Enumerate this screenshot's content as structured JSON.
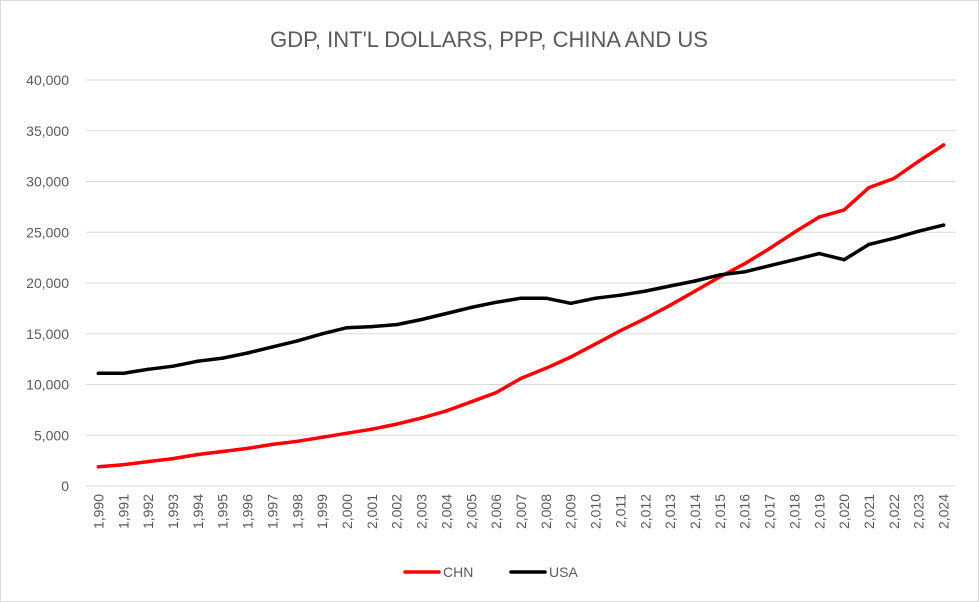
{
  "chart_data": {
    "type": "line",
    "title": "GDP, INT'L DOLLARS, PPP, CHINA AND US",
    "xlabel": "",
    "ylabel": "",
    "ylim": [
      0,
      40000
    ],
    "yticks": [
      "0",
      "5,000",
      "10,000",
      "15,000",
      "20,000",
      "25,000",
      "30,000",
      "35,000",
      "40,000"
    ],
    "yticks_values": [
      0,
      5000,
      10000,
      15000,
      20000,
      25000,
      30000,
      35000,
      40000
    ],
    "grid": true,
    "legend_position": "bottom",
    "categories": [
      "1,990",
      "1,991",
      "1,992",
      "1,993",
      "1,994",
      "1,995",
      "1,996",
      "1,997",
      "1,998",
      "1,999",
      "2,000",
      "2,001",
      "2,002",
      "2,003",
      "2,004",
      "2,005",
      "2,006",
      "2,007",
      "2,008",
      "2,009",
      "2,010",
      "2,011",
      "2,012",
      "2,013",
      "2,014",
      "2,015",
      "2,016",
      "2,017",
      "2,018",
      "2,019",
      "2,020",
      "2,021",
      "2,022",
      "2,023",
      "2,024"
    ],
    "series": [
      {
        "name": "CHN",
        "color": "#ff0000",
        "values": [
          1900,
          2100,
          2400,
          2700,
          3100,
          3400,
          3700,
          4100,
          4400,
          4800,
          5200,
          5600,
          6100,
          6700,
          7400,
          8300,
          9200,
          10600,
          11600,
          12700,
          14000,
          15300,
          16500,
          17800,
          19200,
          20600,
          21900,
          23400,
          25000,
          26500,
          27200,
          29400,
          30300,
          32000,
          33600
        ]
      },
      {
        "name": "USA",
        "color": "#000000",
        "values": [
          11100,
          11100,
          11500,
          11800,
          12300,
          12600,
          13100,
          13700,
          14300,
          15000,
          15600,
          15700,
          15900,
          16400,
          17000,
          17600,
          18100,
          18500,
          18500,
          18000,
          18500,
          18800,
          19200,
          19700,
          20200,
          20800,
          21100,
          21700,
          22300,
          22900,
          22300,
          23800,
          24400,
          25100,
          25700
        ]
      }
    ]
  }
}
